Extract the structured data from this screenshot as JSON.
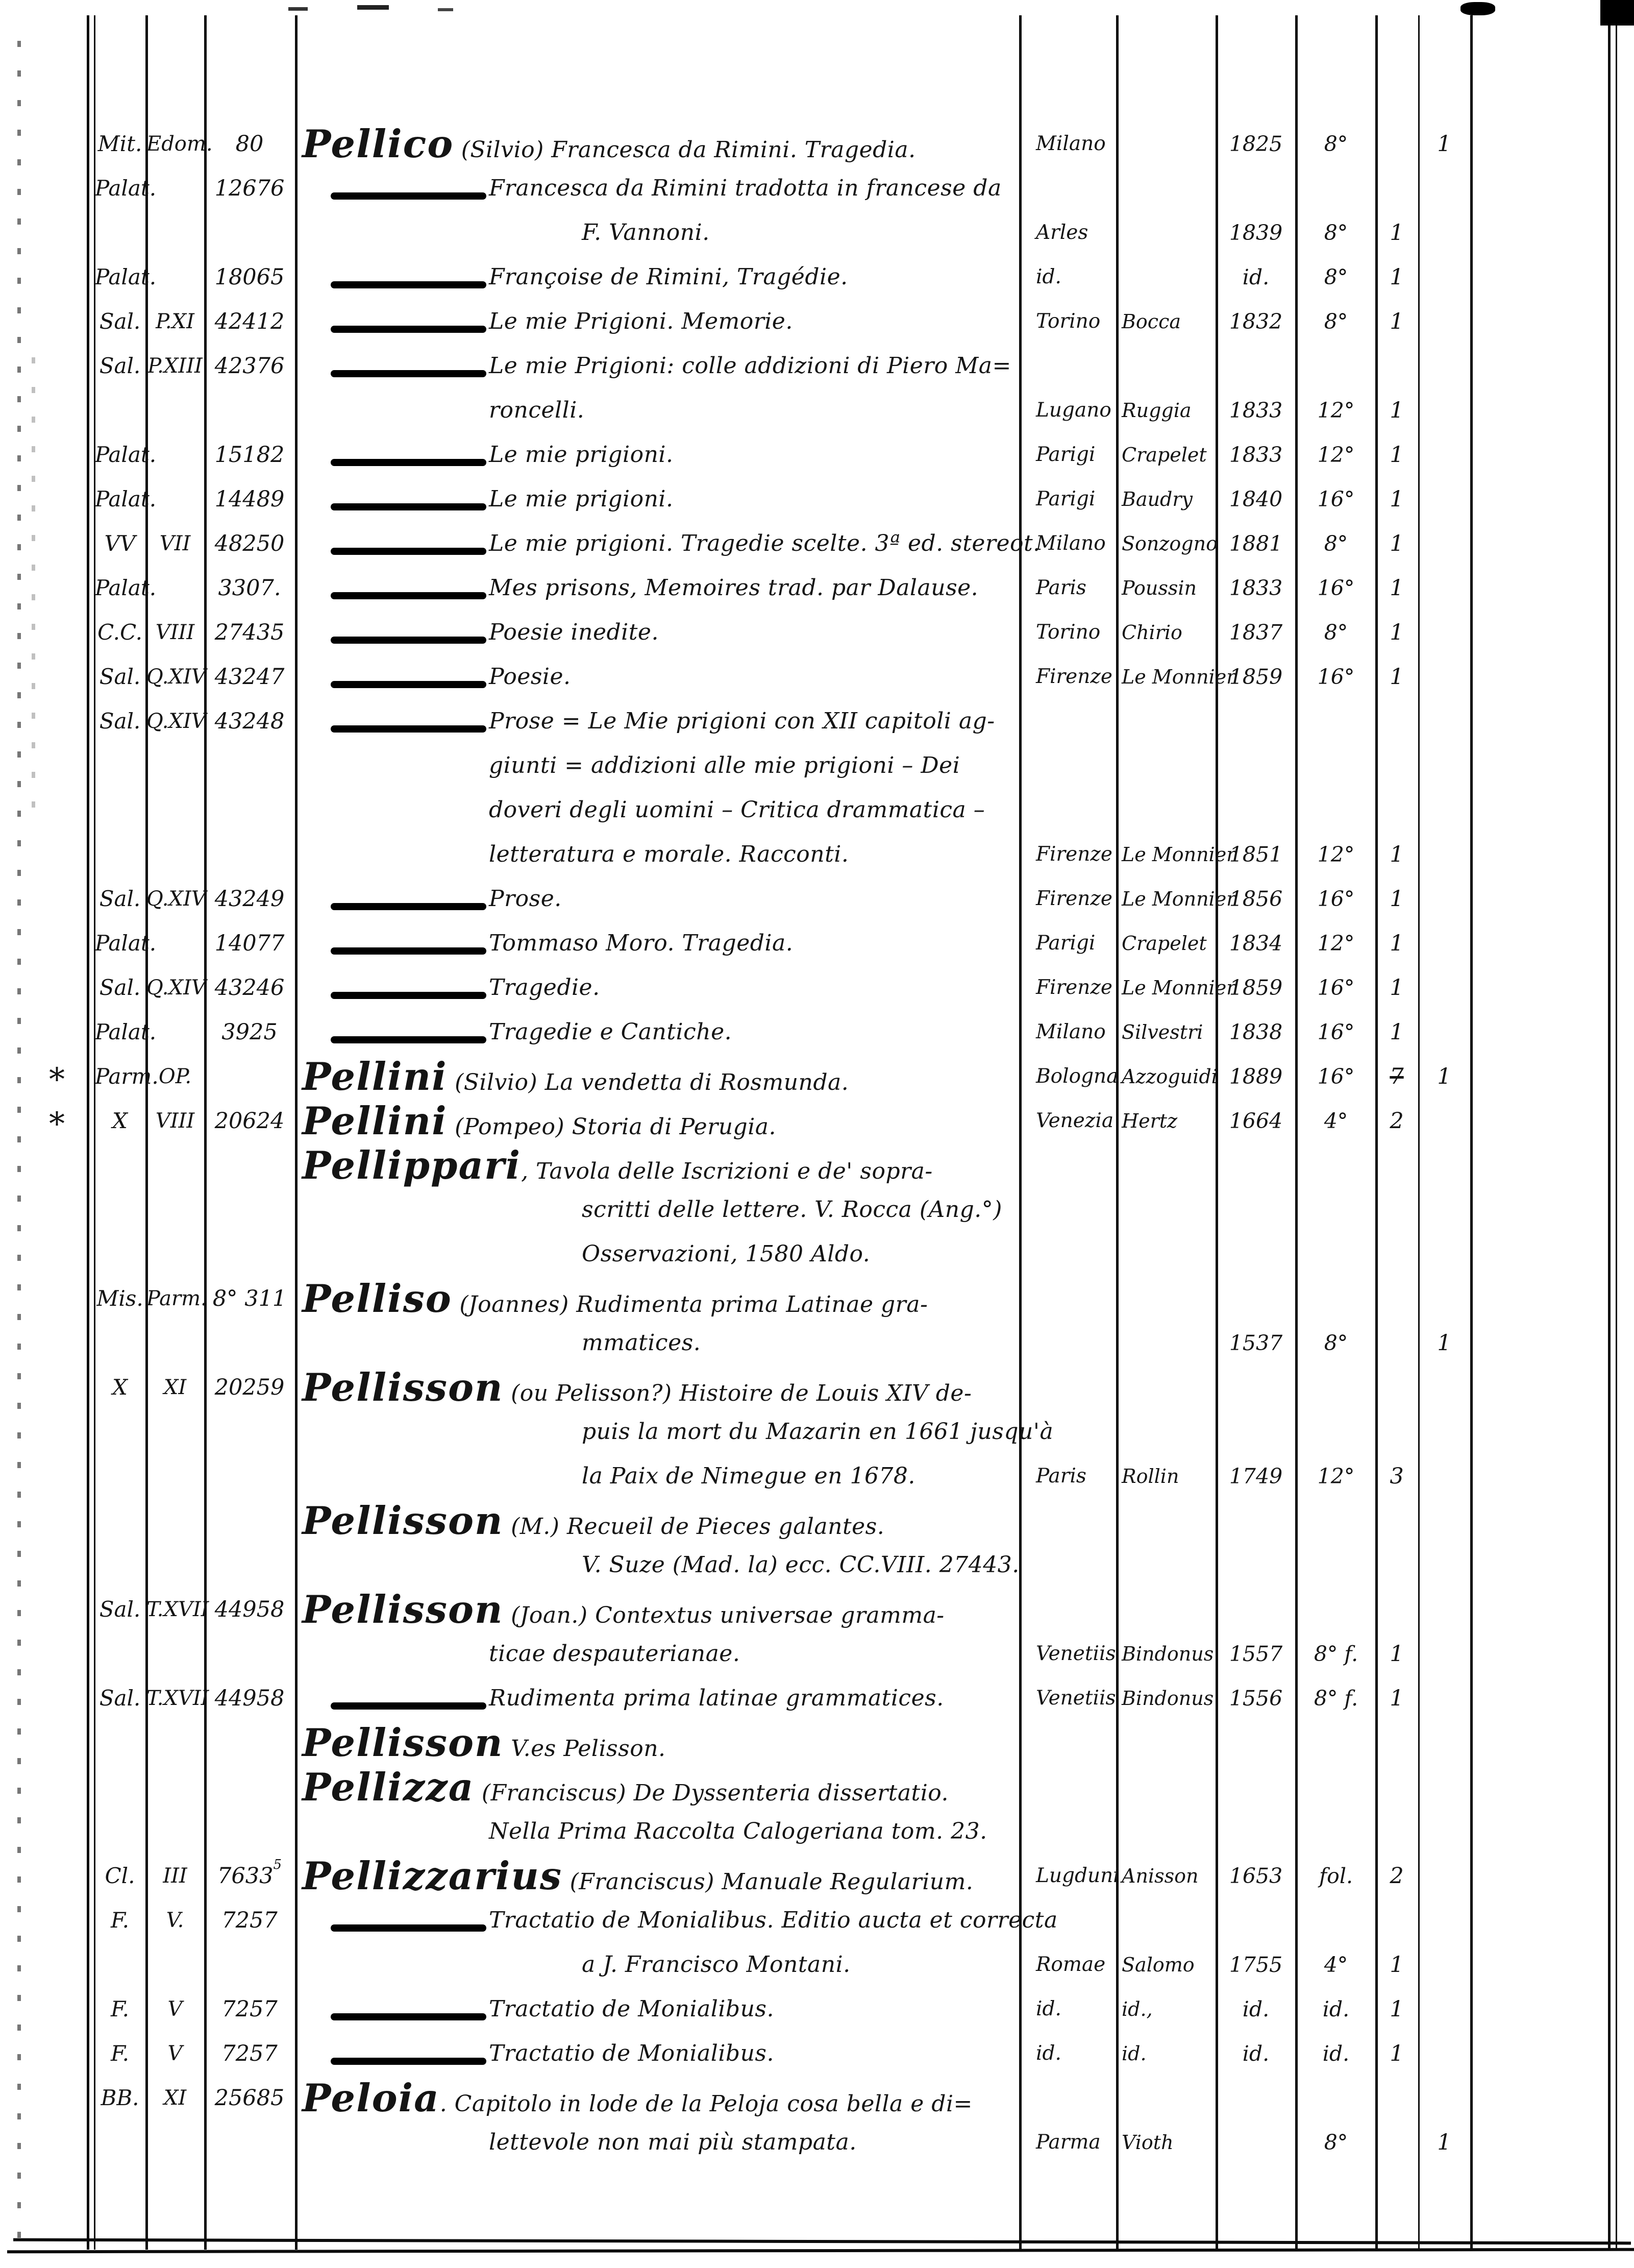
{
  "colors": {
    "ink": "#0c0c0c",
    "paper": "#ffffff"
  },
  "lines": [
    {
      "fondo": "Mit.",
      "series": "Edom.",
      "number": "80",
      "head": "Pellico",
      "text": " (Silvio) Francesca da Rimini. Tragedia.",
      "place": "Milano",
      "year": "1825",
      "format": "8°",
      "copies2": "1"
    },
    {
      "fondo": "Palat.",
      "number": "12676",
      "dash": true,
      "text": "Francesca da Rimini tradotta in francese da"
    },
    {
      "ind": 2,
      "text": "F. Vannoni.",
      "place": "Arles",
      "year": "1839",
      "format": "8°",
      "copies1": "1"
    },
    {
      "fondo": "Palat.",
      "number": "18065",
      "dash": true,
      "text": "Françoise de Rimini, Tragédie.",
      "place": "id.",
      "year": "id.",
      "format": "8°",
      "copies1": "1"
    },
    {
      "fondo": "Sal.",
      "series": "P.XI",
      "number": "42412",
      "dash": true,
      "text": "Le mie Prigioni. Memorie.",
      "place": "Torino",
      "publisher": "Bocca",
      "year": "1832",
      "format": "8°",
      "copies1": "1"
    },
    {
      "fondo": "Sal.",
      "series": "P.XIII",
      "number": "42376",
      "dash": true,
      "text": "Le mie Prigioni: colle addizioni di Piero Ma="
    },
    {
      "ind": 1,
      "text": "roncelli.",
      "place": "Lugano",
      "publisher": "Ruggia",
      "year": "1833",
      "format": "12°",
      "copies1": "1"
    },
    {
      "fondo": "Palat.",
      "number": "15182",
      "dash": true,
      "text": "Le mie prigioni.",
      "place": "Parigi",
      "publisher": "Crapelet",
      "year": "1833",
      "format": "12°",
      "copies1": "1"
    },
    {
      "fondo": "Palat.",
      "number": "14489",
      "dash": true,
      "text": "Le mie prigioni.",
      "place": "Parigi",
      "publisher": "Baudry",
      "year": "1840",
      "format": "16°",
      "copies1": "1"
    },
    {
      "fondo": "VV",
      "series": "VII",
      "number": "48250",
      "dash": true,
      "text": "Le mie prigioni. Tragedie scelte. 3ª ed. stereot.",
      "place": "Milano",
      "publisher": "Sonzogno",
      "year": "1881",
      "format": "8°",
      "copies1": "1"
    },
    {
      "fondo": "Palat.",
      "number": "3307.",
      "dash": true,
      "text": "Mes prisons, Memoires trad. par Dalause.",
      "place": "Paris",
      "publisher": "Poussin",
      "year": "1833",
      "format": "16°",
      "copies1": "1"
    },
    {
      "fondo": "C.C.",
      "series": "VIII",
      "number": "27435",
      "dash": true,
      "text": "Poesie inedite.",
      "place": "Torino",
      "publisher": "Chirio",
      "year": "1837",
      "format": "8°",
      "copies1": "1"
    },
    {
      "fondo": "Sal.",
      "series": "Q.XIV",
      "number": "43247",
      "dash": true,
      "text": "Poesie.",
      "place": "Firenze",
      "publisher": "Le Monnier",
      "year": "1859",
      "format": "16°",
      "copies1": "1"
    },
    {
      "fondo": "Sal.",
      "series": "Q.XIV",
      "number": "43248",
      "dash": true,
      "text": "Prose = Le Mie prigioni con XII capitoli ag-"
    },
    {
      "ind": 1,
      "text": "giunti = addizioni alle mie prigioni – Dei"
    },
    {
      "ind": 1,
      "text": "doveri degli uomini – Critica drammatica –"
    },
    {
      "ind": 1,
      "text": "letteratura e morale. Racconti.",
      "place": "Firenze",
      "publisher": "Le Monnier",
      "year": "1851",
      "format": "12°",
      "copies1": "1"
    },
    {
      "fondo": "Sal.",
      "series": "Q.XIV",
      "number": "43249",
      "dash": true,
      "text": "Prose.",
      "place": "Firenze",
      "publisher": "Le Monnier",
      "year": "1856",
      "format": "16°",
      "copies1": "1"
    },
    {
      "fondo": "Palat.",
      "number": "14077",
      "dash": true,
      "text": "Tommaso Moro. Tragedia.",
      "place": "Parigi",
      "publisher": "Crapelet",
      "year": "1834",
      "format": "12°",
      "copies1": "1"
    },
    {
      "fondo": "Sal.",
      "series": "Q.XIV",
      "number": "43246",
      "dash": true,
      "text": "Tragedie.",
      "place": "Firenze",
      "publisher": "Le Monnier",
      "year": "1859",
      "format": "16°",
      "copies1": "1"
    },
    {
      "fondo": "Palat.",
      "number": "3925",
      "dash": true,
      "text": "Tragedie e Cantiche.",
      "place": "Milano",
      "publisher": "Silvestri",
      "year": "1838",
      "format": "16°",
      "copies1": "1"
    },
    {
      "mark": "*",
      "fondo": "Parm.",
      "series": "OP.",
      "head": "Pellini",
      "text": " (Silvio) La vendetta di Rosmunda.",
      "place": "Bologna",
      "publisher": "Azzoguidi",
      "year": "1889",
      "format": "16°",
      "copies1": "7",
      "copies1_struck": true,
      "copies2": "1"
    },
    {
      "mark": "*",
      "fondo": "X",
      "series": "VIII",
      "number": "20624",
      "head": "Pellini",
      "text": " (Pompeo) Storia di Perugia.",
      "place": "Venezia",
      "publisher": "Hertz",
      "year": "1664",
      "format": "4°",
      "copies1": "2"
    },
    {
      "head": "Pellippari",
      "text": ", Tavola delle Iscrizioni e de' sopra-"
    },
    {
      "ind": 2,
      "text": "scritti delle lettere. V. Rocca (Ang.°)"
    },
    {
      "ind": 2,
      "text": "Osservazioni, 1580 Aldo."
    },
    {
      "fondo": "Mis.",
      "series": "Parm.",
      "number": "8° 311",
      "head": "Pelliso",
      "text": " (Joannes) Rudimenta prima Latinae gra-"
    },
    {
      "ind": 2,
      "text": "mmatices.",
      "year": "1537",
      "format": "8°",
      "copies2": "1"
    },
    {
      "fondo": "X",
      "series": "XI",
      "number": "20259",
      "head": "Pellisson",
      "text": " (ou Pelisson?) Histoire de Louis XIV de-"
    },
    {
      "ind": 2,
      "text": "puis la mort du Mazarin en 1661 jusqu'à"
    },
    {
      "ind": 2,
      "text": "la Paix de Nimegue en 1678.",
      "place": "Paris",
      "publisher": "Rollin",
      "year": "1749",
      "format": "12°",
      "copies1": "3"
    },
    {
      "head": "Pellisson",
      "text": " (M.) Recueil de Pieces galantes."
    },
    {
      "ind": 2,
      "text": "V. Suze (Mad. la) ecc.   CC.VIII. 27443."
    },
    {
      "fondo": "Sal.",
      "series": "T.XVII",
      "number": "44958",
      "head": "Pellisson",
      "text": " (Joan.) Contextus universae gramma-"
    },
    {
      "ind": 1,
      "text": "ticae despauterianae.",
      "place": "Venetiis",
      "publisher": "Bindonus",
      "year": "1557",
      "format": "8° f.",
      "copies1": "1"
    },
    {
      "fondo": "Sal.",
      "series": "T.XVII",
      "number": "44958",
      "dash": true,
      "text": "Rudimenta prima latinae grammatices.",
      "place": "Venetiis",
      "publisher": "Bindonus",
      "year": "1556",
      "format": "8° f.",
      "copies1": "1"
    },
    {
      "head": "Pellisson",
      "text": " V.es Pelisson."
    },
    {
      "head": "Pellizza",
      "text": " (Franciscus) De Dyssenteria dissertatio."
    },
    {
      "ind": 1,
      "text": "Nella Prima Raccolta Calogeriana tom. 23."
    },
    {
      "fondo": "Cl.",
      "series": "III",
      "number": "7633",
      "number_sup": "5",
      "head": "Pellizzarius",
      "text": " (Franciscus) Manuale Regularium.",
      "place": "Lugduni",
      "publisher": "Anisson",
      "year": "1653",
      "format": "fol.",
      "copies1": "2"
    },
    {
      "fondo": "F.",
      "series": "V.",
      "number": "7257",
      "dash": true,
      "text": "Tractatio de Monialibus. Editio aucta et correcta"
    },
    {
      "ind": 2,
      "text": "a J. Francisco Montani.",
      "place": "Romae",
      "publisher": "Salomo",
      "year": "1755",
      "format": "4°",
      "copies1": "1"
    },
    {
      "fondo": "F.",
      "series": "V",
      "number": "7257",
      "dash": true,
      "text": "Tractatio de Monialibus.",
      "place": "id.",
      "publisher": "id.,",
      "year": "id.",
      "format": "id.",
      "copies1": "1"
    },
    {
      "fondo": "F.",
      "series": "V",
      "number": "7257",
      "dash": true,
      "text": "Tractatio de Monialibus.",
      "place": "id.",
      "publisher": "id.",
      "year": "id.",
      "format": "id.",
      "copies1": "1"
    },
    {
      "fondo": "BB.",
      "series": "XI",
      "number": "25685",
      "head": "Peloia",
      "text": ". Capitolo in lode de la Peloja cosa bella e di=",
      "place": "",
      "publisher": ""
    },
    {
      "ind": 1,
      "text": "lettevole non mai più stampata.",
      "place": "Parma",
      "publisher": "Vioth",
      "format": "8°",
      "copies2": "1"
    }
  ]
}
